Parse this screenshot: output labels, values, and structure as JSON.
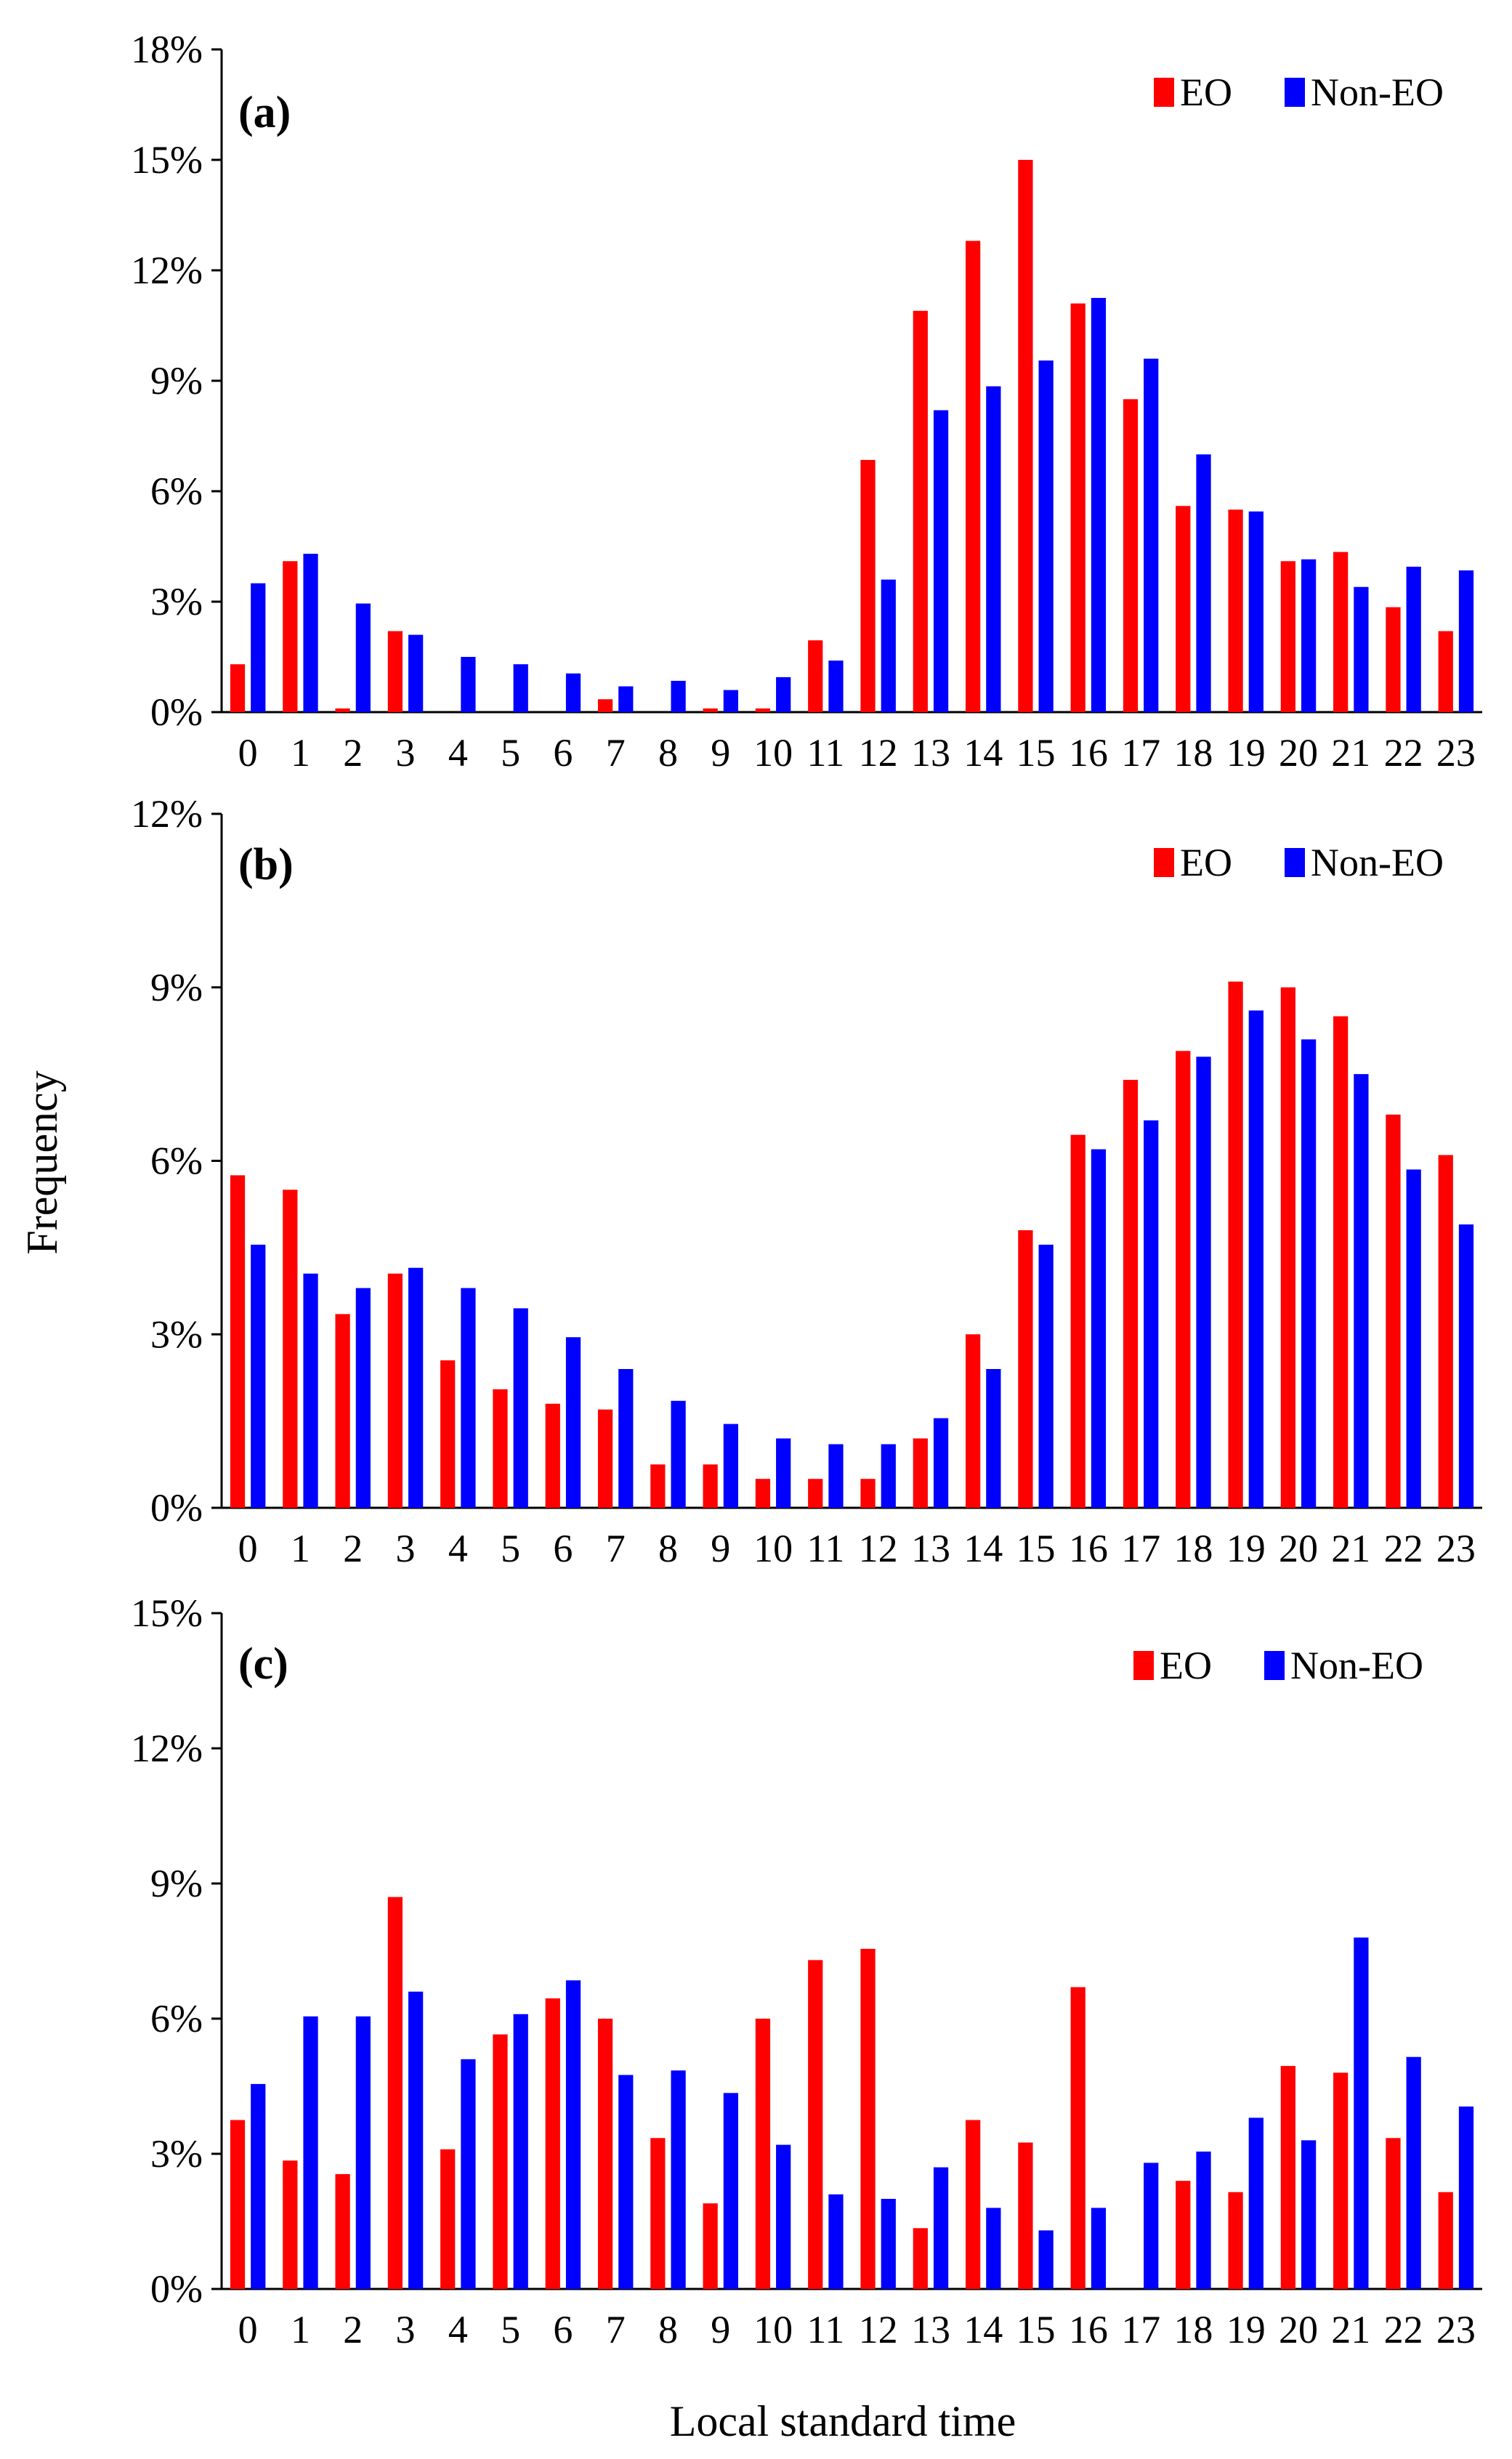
{
  "colors": {
    "eo": "#ff0000",
    "non_eo": "#0000ff",
    "axis": "#000000"
  },
  "ylabel": "Frequency",
  "xlabel": "Local standard time",
  "chart_data": [
    {
      "type": "bar",
      "panel_label": "(a)",
      "categories": [
        "0",
        "1",
        "2",
        "3",
        "4",
        "5",
        "6",
        "7",
        "8",
        "9",
        "10",
        "11",
        "12",
        "13",
        "14",
        "15",
        "16",
        "17",
        "18",
        "19",
        "20",
        "21",
        "22",
        "23"
      ],
      "ylim": [
        0,
        18
      ],
      "yticks": [
        0,
        3,
        6,
        9,
        12,
        15,
        18
      ],
      "ytick_labels": [
        "0%",
        "3%",
        "6%",
        "9%",
        "12%",
        "15%",
        "18%"
      ],
      "legend": {
        "position": "top-right",
        "entries": [
          "EO",
          "Non-EO"
        ]
      },
      "series": [
        {
          "name": "EO",
          "values": [
            1.3,
            4.1,
            0.1,
            2.2,
            0,
            0,
            0,
            0.35,
            0,
            0.1,
            0.1,
            1.95,
            6.85,
            10.9,
            12.8,
            15.0,
            11.1,
            8.5,
            5.6,
            5.5,
            4.1,
            4.35,
            2.85,
            2.2
          ]
        },
        {
          "name": "Non-EO",
          "values": [
            3.5,
            4.3,
            2.95,
            2.1,
            1.5,
            1.3,
            1.05,
            0.7,
            0.85,
            0.6,
            0.95,
            1.4,
            3.6,
            8.2,
            8.85,
            9.55,
            11.25,
            9.6,
            7.0,
            5.45,
            4.15,
            3.4,
            3.95,
            3.85
          ]
        }
      ]
    },
    {
      "type": "bar",
      "panel_label": "(b)",
      "categories": [
        "0",
        "1",
        "2",
        "3",
        "4",
        "5",
        "6",
        "7",
        "8",
        "9",
        "10",
        "11",
        "12",
        "13",
        "14",
        "15",
        "16",
        "17",
        "18",
        "19",
        "20",
        "21",
        "22",
        "23"
      ],
      "ylim": [
        0,
        12
      ],
      "yticks": [
        0,
        3,
        6,
        9,
        12
      ],
      "ytick_labels": [
        "0%",
        "3%",
        "6%",
        "9%",
        "12%"
      ],
      "legend": {
        "position": "top-right",
        "entries": [
          "EO",
          "Non-EO"
        ]
      },
      "series": [
        {
          "name": "EO",
          "values": [
            5.75,
            5.5,
            3.35,
            4.05,
            2.55,
            2.05,
            1.8,
            1.7,
            0.75,
            0.75,
            0.5,
            0.5,
            0.5,
            1.2,
            3.0,
            4.8,
            6.45,
            7.4,
            7.9,
            9.1,
            9.0,
            8.5,
            6.8,
            6.1
          ]
        },
        {
          "name": "Non-EO",
          "values": [
            4.55,
            4.05,
            3.8,
            4.15,
            3.8,
            3.45,
            2.95,
            2.4,
            1.85,
            1.45,
            1.2,
            1.1,
            1.1,
            1.55,
            2.4,
            4.55,
            6.2,
            6.7,
            7.8,
            8.6,
            8.1,
            7.5,
            5.85,
            4.9
          ]
        }
      ]
    },
    {
      "type": "bar",
      "panel_label": "(c)",
      "categories": [
        "0",
        "1",
        "2",
        "3",
        "4",
        "5",
        "6",
        "7",
        "8",
        "9",
        "10",
        "11",
        "12",
        "13",
        "14",
        "15",
        "16",
        "17",
        "18",
        "19",
        "20",
        "21",
        "22",
        "23"
      ],
      "ylim": [
        0,
        15
      ],
      "yticks": [
        0,
        3,
        6,
        9,
        12,
        15
      ],
      "ytick_labels": [
        "0%",
        "3%",
        "6%",
        "9%",
        "12%",
        "15%"
      ],
      "legend": {
        "position": "top-right",
        "entries": [
          "EO",
          "Non-EO"
        ]
      },
      "series": [
        {
          "name": "EO",
          "values": [
            3.75,
            2.85,
            2.55,
            8.7,
            3.1,
            5.65,
            6.45,
            6.0,
            3.35,
            1.9,
            6.0,
            7.3,
            7.55,
            1.35,
            3.75,
            3.25,
            6.7,
            0,
            2.4,
            2.15,
            4.95,
            4.8,
            3.35,
            2.15
          ]
        },
        {
          "name": "Non-EO",
          "values": [
            4.55,
            6.05,
            6.05,
            6.6,
            5.1,
            6.1,
            6.85,
            4.75,
            4.85,
            4.35,
            3.2,
            2.1,
            2.0,
            2.7,
            1.8,
            1.3,
            1.8,
            2.8,
            3.05,
            3.8,
            3.3,
            7.8,
            5.15,
            4.05
          ]
        }
      ]
    }
  ]
}
